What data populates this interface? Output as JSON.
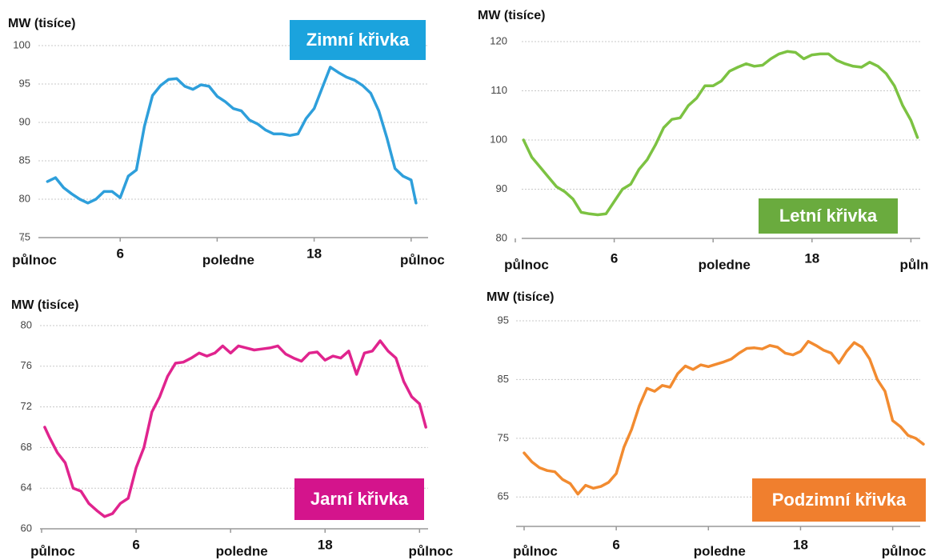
{
  "chart_data": [
    {
      "type": "line",
      "ylabel": "MW (tisíce)",
      "x": [
        1.5,
        2,
        2.5,
        3,
        3.5,
        4,
        4.5,
        5,
        5.5,
        6,
        6.5,
        7,
        7.5,
        8,
        8.5,
        9,
        9.5,
        10,
        10.5,
        11,
        11.5,
        12,
        12.5,
        13,
        13.5,
        14,
        14.5,
        15,
        15.5,
        16,
        16.5,
        17,
        17.5,
        18,
        18.5,
        19,
        19.5,
        20,
        20.5,
        21,
        21.5,
        22,
        22.5,
        23,
        23.5,
        24,
        24.3
      ],
      "series": [
        {
          "name": "Zimní křivka",
          "color": "#2e9fdb",
          "values": [
            82.3,
            82.8,
            81.5,
            80.7,
            80,
            79.5,
            80,
            81,
            81,
            80.2,
            83,
            83.8,
            89.5,
            93.5,
            94.8,
            95.6,
            95.7,
            94.7,
            94.3,
            94.9,
            94.7,
            93.4,
            92.7,
            91.8,
            91.5,
            90.3,
            89.8,
            89,
            88.5,
            88.5,
            88.3,
            88.5,
            90.5,
            91.8,
            94.5,
            97.2,
            96.5,
            95.9,
            95.5,
            94.8,
            93.8,
            91.5,
            88,
            84,
            83,
            82.5,
            79.5
          ]
        }
      ],
      "legend_color": "#1ba3dd",
      "legend": "top-right",
      "xlim": [
        0,
        25
      ],
      "ylim": [
        75,
        100
      ],
      "yticks": [
        75,
        80,
        85,
        90,
        95,
        100
      ],
      "xticks": [
        {
          "value": 0,
          "label": "půlnoc"
        },
        6,
        {
          "value": 12,
          "label": "poledne"
        },
        18,
        {
          "value": 24,
          "label": "půlnoc"
        }
      ],
      "grid": true
    },
    {
      "type": "line",
      "ylabel": "MW (tisíce)",
      "x": [
        0.5,
        1,
        1.5,
        2,
        2.5,
        3,
        3.5,
        4,
        4.5,
        5,
        5.5,
        6,
        6.5,
        7,
        7.5,
        8,
        8.5,
        9,
        9.5,
        10,
        10.5,
        11,
        11.5,
        12,
        12.5,
        13,
        13.5,
        14,
        14.5,
        15,
        15.5,
        16,
        16.5,
        17,
        17.5,
        18,
        18.5,
        19,
        19.5,
        20,
        20.5,
        21,
        21.5,
        22,
        22.5,
        23,
        23.5,
        24,
        24.4
      ],
      "series": [
        {
          "name": "Letní křivka",
          "color": "#7cc242",
          "values": [
            100,
            96.5,
            94.5,
            92.5,
            90.5,
            89.5,
            88,
            85.3,
            85,
            84.8,
            85,
            87.5,
            90,
            91,
            94,
            96,
            99,
            102.5,
            104.2,
            104.5,
            107,
            108.5,
            111,
            111,
            112,
            114,
            114.8,
            115.5,
            115,
            115.2,
            116.5,
            117.5,
            118,
            117.8,
            116.5,
            117.3,
            117.5,
            117.5,
            116.2,
            115.5,
            115,
            114.8,
            115.8,
            115,
            113.5,
            111,
            107,
            104,
            100.5
          ]
        }
      ],
      "legend_color": "#6aab3e",
      "legend": "bottom-right",
      "xlim": [
        0,
        25
      ],
      "ylim": [
        80,
        120
      ],
      "yticks": [
        80,
        90,
        100,
        110,
        120
      ],
      "xticks": [
        {
          "value": 0,
          "label": "půlnoc"
        },
        6,
        {
          "value": 12,
          "label": "poledne"
        },
        18,
        {
          "value": 24,
          "label": "půlnoc"
        }
      ],
      "grid": true
    },
    {
      "type": "line",
      "ylabel": "MW (tisíce)",
      "x": [
        0.2,
        0.5,
        1,
        1.5,
        2,
        2.5,
        3,
        3.5,
        4,
        4.5,
        5,
        5.5,
        6,
        6.5,
        7,
        7.5,
        8,
        8.5,
        9,
        9.5,
        10,
        10.5,
        11,
        11.5,
        12,
        12.5,
        13,
        13.5,
        14,
        14.5,
        15,
        15.5,
        16,
        16.5,
        17,
        17.5,
        18,
        18.5,
        19,
        19.5,
        20,
        20.5,
        21,
        21.5,
        22,
        22.5,
        23,
        23.5,
        24,
        24.4
      ],
      "series": [
        {
          "name": "Jarní křivka",
          "color": "#e0248e",
          "values": [
            70,
            69,
            67.5,
            66.5,
            64,
            63.7,
            62.5,
            61.8,
            61.2,
            61.5,
            62.5,
            63,
            66,
            68,
            71.5,
            73,
            75,
            76.3,
            76.4,
            76.8,
            77.3,
            77,
            77.3,
            78,
            77.3,
            78,
            77.8,
            77.6,
            77.7,
            77.8,
            78,
            77.2,
            76.8,
            76.5,
            77.3,
            77.4,
            76.6,
            77,
            76.8,
            77.5,
            75.2,
            77.3,
            77.5,
            78.5,
            77.5,
            76.8,
            74.5,
            73,
            72.3,
            70
          ]
        }
      ],
      "legend_color": "#d4148c",
      "legend": "bottom-right",
      "xlim": [
        0,
        25
      ],
      "ylim": [
        60,
        80
      ],
      "yticks": [
        60,
        64,
        68,
        72,
        76,
        80
      ],
      "xticks": [
        {
          "value": 0,
          "label": "půlnoc"
        },
        6,
        {
          "value": 12,
          "label": "poledne"
        },
        18,
        {
          "value": 24,
          "label": "půlnoc"
        }
      ],
      "grid": true
    },
    {
      "type": "line",
      "ylabel": "MW (tisíce)",
      "x": [
        0,
        0.5,
        1,
        1.5,
        2,
        2.5,
        3,
        3.5,
        4,
        4.5,
        5,
        5.5,
        6,
        6.5,
        7,
        7.5,
        8,
        8.5,
        9,
        9.5,
        10,
        10.5,
        11,
        11.5,
        12,
        12.5,
        13,
        13.5,
        14,
        14.5,
        15,
        15.5,
        16,
        16.5,
        17,
        17.5,
        18,
        18.5,
        19,
        19.5,
        20,
        20.5,
        21,
        21.5,
        22,
        22.5,
        23,
        23.5,
        24,
        24.5,
        25,
        25.5,
        26
      ],
      "series": [
        {
          "name": "Podzimní křivka",
          "color": "#f28b30",
          "values": [
            72.5,
            71,
            70,
            69.5,
            69.3,
            68,
            67.3,
            65.5,
            67,
            66.5,
            66.8,
            67.5,
            69,
            73.5,
            76.5,
            80.5,
            83.5,
            83,
            84,
            83.7,
            86,
            87.3,
            86.7,
            87.5,
            87.2,
            87.6,
            88,
            88.5,
            89.5,
            90.3,
            90.4,
            90.2,
            90.8,
            90.5,
            89.5,
            89.2,
            89.8,
            91.5,
            90.8,
            90,
            89.5,
            87.8,
            89.8,
            91.3,
            90.5,
            88.5,
            85,
            83,
            78,
            77,
            75.5,
            75,
            74
          ]
        }
      ],
      "legend_color": "#f07f2e",
      "legend": "bottom-right",
      "xlim": [
        0,
        26
      ],
      "ylim": [
        60,
        95
      ],
      "yticks": [
        65,
        75,
        85,
        95
      ],
      "xticks": [
        {
          "value": 0,
          "label": "půlnoc"
        },
        6,
        {
          "value": 12,
          "label": "poledne"
        },
        18,
        {
          "value": 24,
          "label": "půlnoc"
        }
      ],
      "grid": true
    }
  ]
}
